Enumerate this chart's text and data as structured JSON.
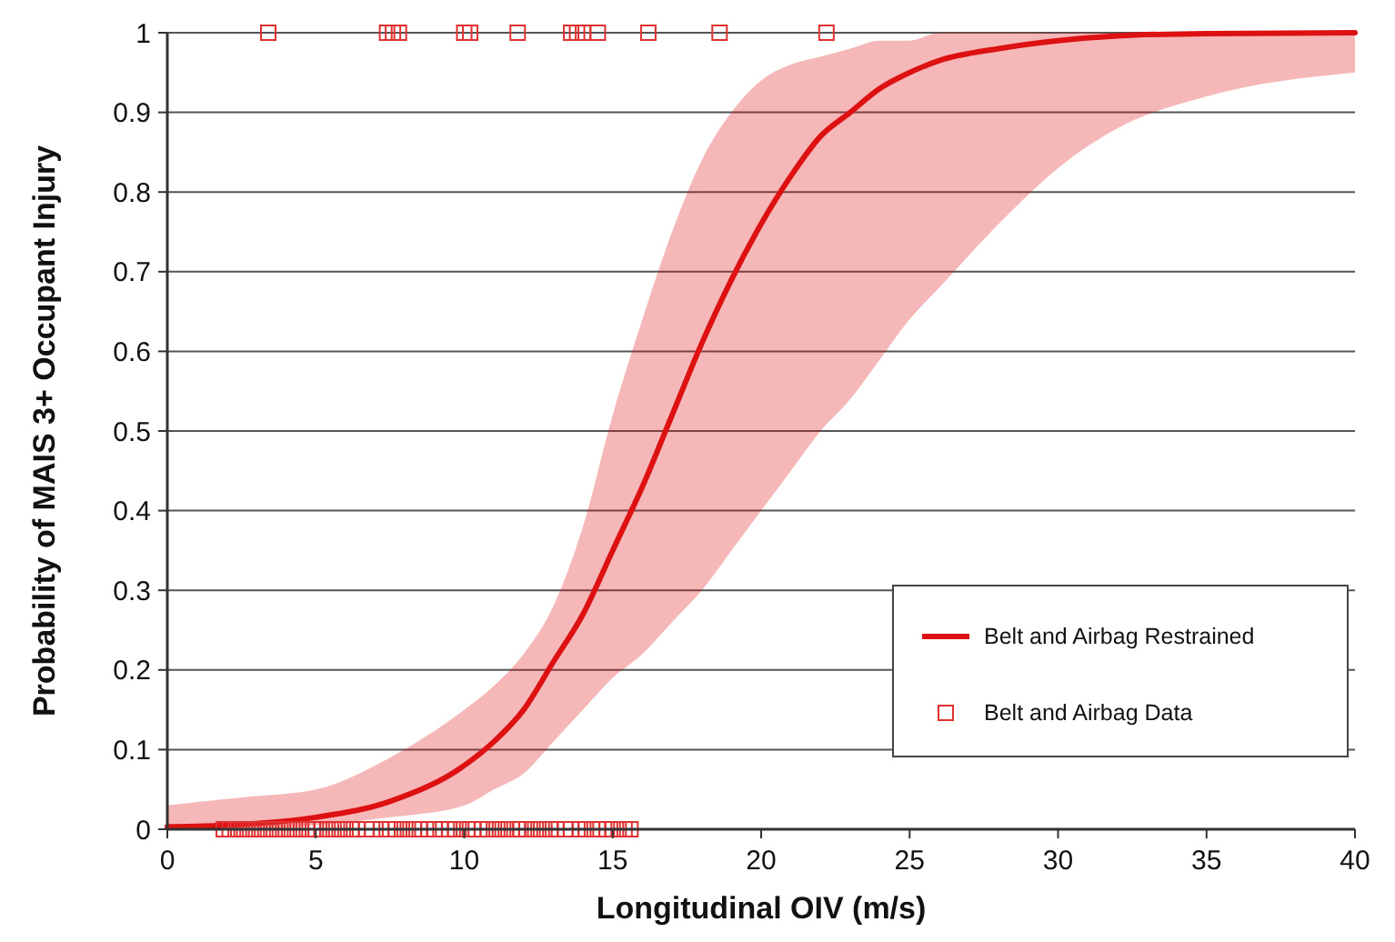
{
  "chart_data": {
    "type": "line",
    "xlabel": "Longitudinal OIV (m/s)",
    "ylabel": "Probability of MAIS 3+ Occupant Injury",
    "xlim": [
      0,
      40
    ],
    "xticks": [
      0,
      5,
      10,
      15,
      20,
      25,
      30,
      35,
      40
    ],
    "ylim": [
      0,
      1
    ],
    "yticks": [
      0,
      0.1,
      0.2,
      0.3,
      0.4,
      0.5,
      0.6,
      0.7,
      0.8,
      0.9,
      1
    ],
    "grid": "y",
    "legend": "bottom right",
    "series": [
      {
        "name": "Belt and Airbag Restrained",
        "color": "#dd1111",
        "marker": "none",
        "x": [
          0,
          2.5,
          5,
          7.5,
          10,
          11,
          12,
          13,
          14,
          15,
          16,
          17,
          18,
          19,
          20,
          21,
          22,
          23,
          24,
          25,
          26,
          28,
          30,
          32,
          35,
          40
        ],
        "values": [
          0.003,
          0.006,
          0.015,
          0.035,
          0.08,
          0.11,
          0.15,
          0.21,
          0.27,
          0.35,
          0.43,
          0.52,
          0.61,
          0.69,
          0.76,
          0.82,
          0.87,
          0.9,
          0.93,
          0.95,
          0.965,
          0.98,
          0.99,
          0.996,
          0.999,
          1
        ],
        "lower": [
          0,
          0,
          0.005,
          0.015,
          0.03,
          0.05,
          0.07,
          0.11,
          0.15,
          0.19,
          0.22,
          0.26,
          0.3,
          0.35,
          0.4,
          0.45,
          0.5,
          0.54,
          0.59,
          0.64,
          0.68,
          0.76,
          0.83,
          0.88,
          0.92,
          0.95
        ],
        "upper": [
          0.03,
          0.04,
          0.05,
          0.09,
          0.15,
          0.18,
          0.22,
          0.28,
          0.38,
          0.52,
          0.64,
          0.75,
          0.84,
          0.9,
          0.94,
          0.96,
          0.97,
          0.98,
          0.99,
          0.99,
          1,
          1,
          1,
          1,
          1,
          1
        ]
      },
      {
        "name": "Belt and Airbag Data",
        "type": "scatter",
        "color": "#e03030",
        "marker": "square",
        "x": [
          3.4,
          7.4,
          7.6,
          7.8,
          10,
          10.2,
          11.8,
          13.6,
          13.8,
          14,
          14.5,
          16.2,
          18.6,
          22.2,
          1.9,
          2.1,
          2.3,
          2.5,
          2.7,
          2.9,
          3.1,
          3.3,
          3.5,
          3.7,
          3.9,
          4.1,
          4.3,
          4.5,
          4.7,
          4.9,
          5,
          5.2,
          5.4,
          5.6,
          5.8,
          6,
          6.2,
          6.4,
          6.7,
          6.9,
          7.2,
          7.5,
          7.7,
          7.9,
          8.1,
          8.3,
          8.5,
          8.8,
          9,
          9.2,
          9.5,
          9.7,
          9.9,
          10.1,
          10.3,
          10.6,
          10.8,
          11,
          11.2,
          11.4,
          11.6,
          11.8,
          11.9,
          12.1,
          12.3,
          12.5,
          12.7,
          12.9,
          13.1,
          13.4,
          13.6,
          13.9,
          14.1,
          14.3,
          14.5,
          14.8,
          15,
          15.2,
          15.4,
          15.6
        ],
        "values": [
          1,
          1,
          1,
          1,
          1,
          1,
          1,
          1,
          1,
          1,
          1,
          1,
          1,
          1,
          0,
          0,
          0,
          0,
          0,
          0,
          0,
          0,
          0,
          0,
          0,
          0,
          0,
          0,
          0,
          0,
          0,
          0,
          0,
          0,
          0,
          0,
          0,
          0,
          0,
          0,
          0,
          0,
          0,
          0,
          0,
          0,
          0,
          0,
          0,
          0,
          0,
          0,
          0,
          0,
          0,
          0,
          0,
          0,
          0,
          0,
          0,
          0,
          0,
          0,
          0,
          0,
          0,
          0,
          0,
          0,
          0,
          0,
          0,
          0,
          0,
          0,
          0,
          0,
          0,
          0
        ]
      }
    ]
  }
}
